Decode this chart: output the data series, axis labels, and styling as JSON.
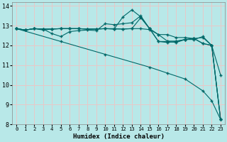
{
  "xlabel": "Humidex (Indice chaleur)",
  "bg_color": "#b8e8e8",
  "grid_color": "#e8c8c8",
  "line_color": "#006868",
  "xlim": [
    -0.5,
    23.5
  ],
  "ylim": [
    8,
    14.2
  ],
  "xticks": [
    0,
    1,
    2,
    3,
    4,
    5,
    6,
    7,
    8,
    9,
    10,
    11,
    12,
    13,
    14,
    15,
    16,
    17,
    18,
    19,
    20,
    21,
    22,
    23
  ],
  "yticks": [
    8,
    9,
    10,
    11,
    12,
    13,
    14
  ],
  "line1_x": [
    0,
    1,
    2,
    3,
    4,
    5,
    6,
    7,
    8,
    9,
    10,
    11,
    12,
    13,
    14,
    15,
    16,
    17,
    18,
    19,
    20,
    21,
    22,
    23
  ],
  "line1_y": [
    12.85,
    12.78,
    12.85,
    12.83,
    12.6,
    12.45,
    12.7,
    12.75,
    12.78,
    12.75,
    13.1,
    13.05,
    13.1,
    13.15,
    13.5,
    12.85,
    12.2,
    12.2,
    12.15,
    12.3,
    12.3,
    12.45,
    12.0,
    10.5
  ],
  "line2_x": [
    0,
    1,
    2,
    3,
    4,
    5,
    6,
    7,
    8,
    9,
    10,
    11,
    12,
    13,
    14,
    15,
    16,
    17,
    18,
    19,
    20,
    21,
    22,
    23
  ],
  "line2_y": [
    12.85,
    12.78,
    12.85,
    12.83,
    12.83,
    12.85,
    12.85,
    12.85,
    12.83,
    12.83,
    12.85,
    12.83,
    13.45,
    13.8,
    13.45,
    12.85,
    12.55,
    12.55,
    12.4,
    12.4,
    12.35,
    12.1,
    12.0,
    8.25
  ],
  "line3_x": [
    0,
    1,
    2,
    3,
    4,
    5,
    6,
    7,
    8,
    9,
    10,
    11,
    12,
    13,
    14,
    15,
    16,
    17,
    18,
    19,
    20,
    21,
    22,
    23
  ],
  "line3_y": [
    12.85,
    12.78,
    12.85,
    12.83,
    12.83,
    12.85,
    12.85,
    12.85,
    12.83,
    12.83,
    12.85,
    12.83,
    12.83,
    12.85,
    13.4,
    12.85,
    12.2,
    12.15,
    12.2,
    12.3,
    12.35,
    12.4,
    12.0,
    8.25
  ],
  "line4_x": [
    0,
    1,
    2,
    3,
    4,
    5,
    6,
    7,
    8,
    9,
    10,
    11,
    12,
    13,
    14,
    15,
    16,
    17,
    18,
    19,
    20,
    21,
    22,
    23
  ],
  "line4_y": [
    12.85,
    12.78,
    12.85,
    12.78,
    12.83,
    12.85,
    12.85,
    12.85,
    12.83,
    12.83,
    12.85,
    12.85,
    12.83,
    12.85,
    12.85,
    12.8,
    12.55,
    12.22,
    12.22,
    12.3,
    12.35,
    12.1,
    12.0,
    8.25
  ],
  "diag_x": [
    0,
    5,
    10,
    15,
    17,
    19,
    21,
    22,
    23
  ],
  "diag_y": [
    12.85,
    12.2,
    11.55,
    10.9,
    10.6,
    10.3,
    9.7,
    9.2,
    8.25
  ]
}
